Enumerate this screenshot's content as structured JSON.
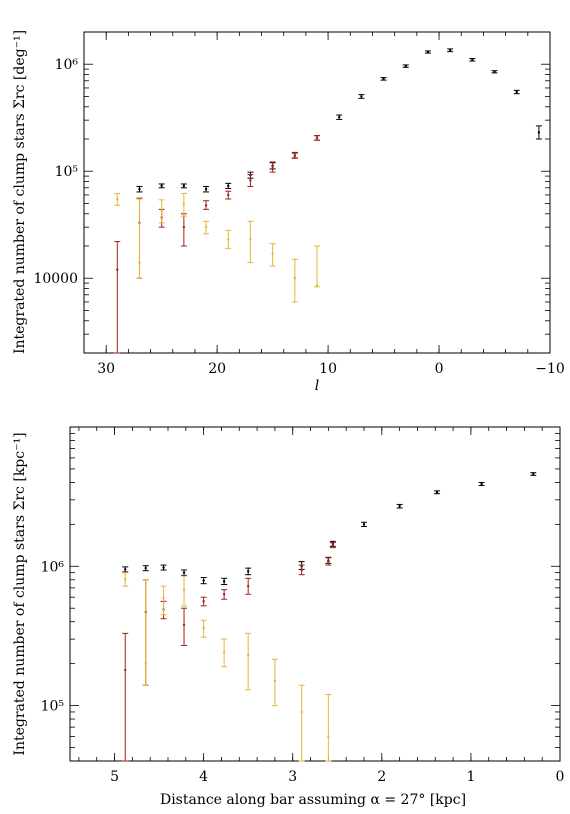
{
  "chart_data": [
    {
      "type": "scatter",
      "title": "",
      "xlabel": "l",
      "ylabel": "Integrated number of clump stars Σrc [deg⁻¹]",
      "x_axis_reversed": true,
      "xlim": [
        32,
        -10
      ],
      "ylim": [
        2000,
        2000000
      ],
      "y_scale": "log",
      "x_ticks": [
        {
          "value": 30,
          "label": "30"
        },
        {
          "value": 20,
          "label": "20"
        },
        {
          "value": 10,
          "label": "10"
        },
        {
          "value": 0,
          "label": "0"
        },
        {
          "value": -10,
          "label": "−10"
        }
      ],
      "y_ticks": [
        {
          "value": 10000,
          "label": "10000"
        },
        {
          "value": 100000,
          "label": "10⁵"
        },
        {
          "value": 1000000,
          "label": "10⁶"
        }
      ],
      "series": [
        {
          "color": "#000000",
          "points": [
            {
              "x": 27,
              "y": 68000,
              "lo": 64000,
              "hi": 72000
            },
            {
              "x": 25,
              "y": 73000,
              "lo": 70000,
              "hi": 76000
            },
            {
              "x": 23,
              "y": 73000,
              "lo": 70000,
              "hi": 76000
            },
            {
              "x": 21,
              "y": 68000,
              "lo": 64000,
              "hi": 72000
            },
            {
              "x": 19,
              "y": 73000,
              "lo": 69000,
              "hi": 77000
            },
            {
              "x": 17,
              "y": 92000,
              "lo": 86000,
              "hi": 98000
            },
            {
              "x": 15,
              "y": 112000,
              "lo": 105000,
              "hi": 120000
            },
            {
              "x": 13,
              "y": 140000,
              "lo": 133000,
              "hi": 148000
            },
            {
              "x": 11,
              "y": 205000,
              "lo": 195000,
              "hi": 215000
            },
            {
              "x": 9,
              "y": 320000,
              "lo": 305000,
              "hi": 335000
            },
            {
              "x": 7,
              "y": 500000,
              "lo": 480000,
              "hi": 520000
            },
            {
              "x": 5,
              "y": 730000,
              "lo": 710000,
              "hi": 750000
            },
            {
              "x": 3,
              "y": 960000,
              "lo": 935000,
              "hi": 985000
            },
            {
              "x": 1,
              "y": 1300000,
              "lo": 1270000,
              "hi": 1330000
            },
            {
              "x": -1,
              "y": 1350000,
              "lo": 1310000,
              "hi": 1390000
            },
            {
              "x": -3,
              "y": 1100000,
              "lo": 1070000,
              "hi": 1130000
            },
            {
              "x": -5,
              "y": 850000,
              "lo": 830000,
              "hi": 870000
            },
            {
              "x": -7,
              "y": 550000,
              "lo": 530000,
              "hi": 570000
            },
            {
              "x": -9,
              "y": 230000,
              "lo": 200000,
              "hi": 265000
            }
          ]
        },
        {
          "color": "#a0221a",
          "points": [
            {
              "x": 29,
              "y": 12000,
              "lo": 2000,
              "hi": 22000
            },
            {
              "x": 27,
              "y": 33000,
              "lo": 10000,
              "hi": 56000
            },
            {
              "x": 25,
              "y": 37000,
              "lo": 30000,
              "hi": 44000
            },
            {
              "x": 23,
              "y": 30000,
              "lo": 20000,
              "hi": 40000
            },
            {
              "x": 21,
              "y": 48000,
              "lo": 44000,
              "hi": 53000
            },
            {
              "x": 19,
              "y": 60000,
              "lo": 55000,
              "hi": 65000
            },
            {
              "x": 17,
              "y": 82000,
              "lo": 72000,
              "hi": 93000
            },
            {
              "x": 15,
              "y": 110000,
              "lo": 98000,
              "hi": 122000
            },
            {
              "x": 13,
              "y": 140000,
              "lo": 132000,
              "hi": 150000
            },
            {
              "x": 11,
              "y": 205000,
              "lo": 195000,
              "hi": 215000
            }
          ]
        },
        {
          "color": "#e6b53a",
          "points": [
            {
              "x": 29,
              "y": 55000,
              "lo": 48000,
              "hi": 62000
            },
            {
              "x": 27,
              "y": 14000,
              "lo": 10000,
              "hi": 55000
            },
            {
              "x": 25,
              "y": 43000,
              "lo": 33000,
              "hi": 54000
            },
            {
              "x": 23,
              "y": 50000,
              "lo": 38000,
              "hi": 62000
            },
            {
              "x": 21,
              "y": 30000,
              "lo": 26000,
              "hi": 34000
            },
            {
              "x": 19,
              "y": 23000,
              "lo": 19000,
              "hi": 28000
            },
            {
              "x": 17,
              "y": 23000,
              "lo": 14000,
              "hi": 34000
            },
            {
              "x": 15,
              "y": 17000,
              "lo": 13000,
              "hi": 21000
            },
            {
              "x": 13,
              "y": 10000,
              "lo": 6000,
              "hi": 15000
            },
            {
              "x": 11,
              "y": 8500,
              "lo": 8300,
              "hi": 20000
            }
          ]
        }
      ]
    },
    {
      "type": "scatter",
      "title": "",
      "xlabel": "Distance along bar assuming α = 27° [kpc]",
      "ylabel": "Integrated number of clump stars Σrc [kpc⁻¹]",
      "x_axis_reversed": true,
      "xlim": [
        5.5,
        0
      ],
      "ylim": [
        40000,
        10000000
      ],
      "y_scale": "log",
      "x_ticks": [
        {
          "value": 5,
          "label": "5"
        },
        {
          "value": 4,
          "label": "4"
        },
        {
          "value": 3,
          "label": "3"
        },
        {
          "value": 2,
          "label": "2"
        },
        {
          "value": 1,
          "label": "1"
        },
        {
          "value": 0,
          "label": "0"
        }
      ],
      "y_ticks": [
        {
          "value": 100000,
          "label": "10⁵"
        },
        {
          "value": 1000000,
          "label": "10⁶"
        }
      ],
      "series": [
        {
          "color": "#000000",
          "points": [
            {
              "x": 4.88,
              "y": 950000,
              "lo": 910000,
              "hi": 990000
            },
            {
              "x": 4.65,
              "y": 970000,
              "lo": 930000,
              "hi": 1010000
            },
            {
              "x": 4.45,
              "y": 980000,
              "lo": 940000,
              "hi": 1020000
            },
            {
              "x": 4.22,
              "y": 900000,
              "lo": 860000,
              "hi": 940000
            },
            {
              "x": 4.0,
              "y": 790000,
              "lo": 750000,
              "hi": 830000
            },
            {
              "x": 3.77,
              "y": 780000,
              "lo": 740000,
              "hi": 820000
            },
            {
              "x": 3.5,
              "y": 920000,
              "lo": 870000,
              "hi": 970000
            },
            {
              "x": 2.9,
              "y": 1000000,
              "lo": 950000,
              "hi": 1080000
            },
            {
              "x": 2.6,
              "y": 1100000,
              "lo": 1050000,
              "hi": 1160000
            },
            {
              "x": 2.55,
              "y": 1450000,
              "lo": 1390000,
              "hi": 1510000
            },
            {
              "x": 2.2,
              "y": 2000000,
              "lo": 1930000,
              "hi": 2070000
            },
            {
              "x": 1.8,
              "y": 2700000,
              "lo": 2620000,
              "hi": 2780000
            },
            {
              "x": 1.38,
              "y": 3400000,
              "lo": 3320000,
              "hi": 3480000
            },
            {
              "x": 0.88,
              "y": 3900000,
              "lo": 3800000,
              "hi": 4000000
            },
            {
              "x": 0.3,
              "y": 4600000,
              "lo": 4500000,
              "hi": 4700000
            }
          ]
        },
        {
          "color": "#a0221a",
          "points": [
            {
              "x": 4.88,
              "y": 180000,
              "lo": 40000,
              "hi": 330000
            },
            {
              "x": 4.65,
              "y": 470000,
              "lo": 140000,
              "hi": 800000
            },
            {
              "x": 4.45,
              "y": 490000,
              "lo": 420000,
              "hi": 560000
            },
            {
              "x": 4.22,
              "y": 380000,
              "lo": 270000,
              "hi": 500000
            },
            {
              "x": 4.0,
              "y": 560000,
              "lo": 520000,
              "hi": 600000
            },
            {
              "x": 3.77,
              "y": 630000,
              "lo": 580000,
              "hi": 680000
            },
            {
              "x": 3.5,
              "y": 720000,
              "lo": 630000,
              "hi": 820000
            },
            {
              "x": 2.9,
              "y": 940000,
              "lo": 870000,
              "hi": 1020000
            },
            {
              "x": 2.6,
              "y": 1080000,
              "lo": 1020000,
              "hi": 1150000
            },
            {
              "x": 2.55,
              "y": 1420000,
              "lo": 1360000,
              "hi": 1480000
            }
          ]
        },
        {
          "color": "#e6b53a",
          "points": [
            {
              "x": 4.88,
              "y": 810000,
              "lo": 720000,
              "hi": 900000
            },
            {
              "x": 4.65,
              "y": 200000,
              "lo": 140000,
              "hi": 800000
            },
            {
              "x": 4.45,
              "y": 590000,
              "lo": 450000,
              "hi": 720000
            },
            {
              "x": 4.22,
              "y": 680000,
              "lo": 520000,
              "hi": 850000
            },
            {
              "x": 4.0,
              "y": 360000,
              "lo": 310000,
              "hi": 410000
            },
            {
              "x": 3.77,
              "y": 240000,
              "lo": 190000,
              "hi": 300000
            },
            {
              "x": 3.5,
              "y": 230000,
              "lo": 130000,
              "hi": 330000
            },
            {
              "x": 3.2,
              "y": 150000,
              "lo": 100000,
              "hi": 215000
            },
            {
              "x": 2.9,
              "y": 90000,
              "lo": 40000,
              "hi": 140000
            },
            {
              "x": 2.6,
              "y": 60000,
              "lo": 40000,
              "hi": 120000
            }
          ]
        }
      ]
    }
  ]
}
